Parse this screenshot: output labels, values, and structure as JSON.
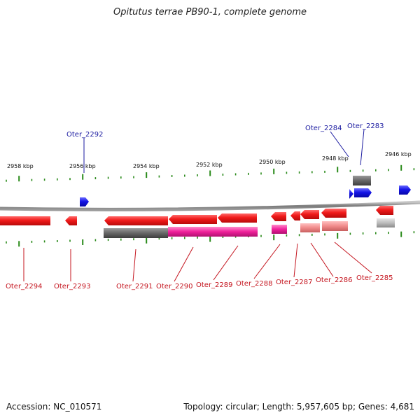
{
  "title": "Opitutus terrae PB90-1, complete genome",
  "footer": {
    "accession": "Accession: NC_010571",
    "summary": "Topology: circular; Length: 5,957,605 bp; Genes: 4,681"
  },
  "colors": {
    "forward_gene": "#0a0adc",
    "reverse_gene": "#e8121e",
    "tick": "#2a8a1a",
    "backbone": "#8a8a8a",
    "forward_label": "#1a1aa0",
    "reverse_label": "#c4141e"
  },
  "scale_labels": [
    "2958 kbp",
    "2956 kbp",
    "2954 kbp",
    "2952 kbp",
    "2950 kbp",
    "2948 kbp",
    "2946 kbp"
  ],
  "forward_genes": [
    {
      "name": "Oter_2292"
    },
    {
      "name": "Oter_2284"
    },
    {
      "name": "Oter_2283"
    }
  ],
  "reverse_genes": [
    {
      "name": "Oter_2294"
    },
    {
      "name": "Oter_2293"
    },
    {
      "name": "Oter_2291"
    },
    {
      "name": "Oter_2290"
    },
    {
      "name": "Oter_2289"
    },
    {
      "name": "Oter_2288"
    },
    {
      "name": "Oter_2287"
    },
    {
      "name": "Oter_2286"
    },
    {
      "name": "Oter_2285"
    }
  ]
}
